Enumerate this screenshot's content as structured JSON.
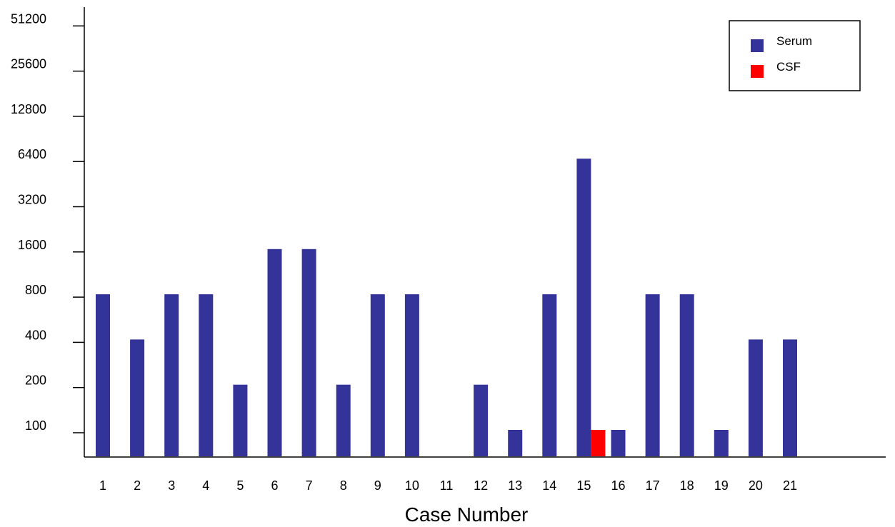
{
  "chart_data": {
    "type": "bar",
    "xlabel": "Case Number",
    "ylabel": "",
    "y_scale": "log2",
    "ylim": [
      50,
      51200
    ],
    "y_ticks": [
      100,
      200,
      400,
      800,
      1600,
      3200,
      6400,
      12800,
      25600,
      51200
    ],
    "y_tick_labels": [
      "100",
      "200",
      "400",
      "800",
      "1600",
      "3200",
      "6400",
      "12800",
      "25600",
      "51200"
    ],
    "categories": [
      "1",
      "2",
      "3",
      "4",
      "5",
      "6",
      "7",
      "8",
      "9",
      "10",
      "11",
      "12",
      "13",
      "14",
      "15",
      "16",
      "17",
      "18",
      "19",
      "20",
      "21"
    ],
    "series": [
      {
        "name": "Serum",
        "color": "#333399",
        "values": [
          800,
          400,
          800,
          800,
          200,
          1600,
          1600,
          200,
          800,
          800,
          null,
          200,
          100,
          800,
          6400,
          100,
          800,
          800,
          100,
          400,
          400
        ]
      },
      {
        "name": "CSF",
        "color": "#ff0000",
        "values": [
          null,
          null,
          null,
          null,
          null,
          null,
          null,
          null,
          null,
          null,
          null,
          null,
          null,
          null,
          100,
          null,
          null,
          null,
          null,
          null,
          null
        ]
      }
    ],
    "legend": {
      "position": "top-right",
      "entries": [
        "Serum",
        "CSF"
      ]
    },
    "grid": false
  }
}
